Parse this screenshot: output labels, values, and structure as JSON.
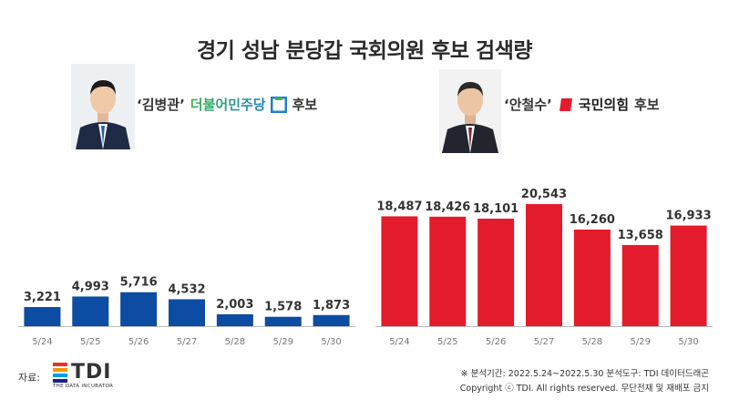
{
  "title": "경기 성남 분당갑 국회의원 후보 검색량",
  "candidates": [
    {
      "name": "‘김병관’",
      "party": "더불어민주당",
      "suffix": "후보",
      "color": "#0c4ca3",
      "party_colors": [
        "#3bb54a",
        "#1e7fc6"
      ]
    },
    {
      "name": "‘안철수’",
      "party": "국민의힘",
      "suffix": "후보",
      "color": "#e41b2c",
      "party_colors": [
        "#e41b2c"
      ]
    }
  ],
  "chart_data": [
    {
      "type": "bar",
      "categories": [
        "5/24",
        "5/25",
        "5/26",
        "5/27",
        "5/28",
        "5/29",
        "5/30"
      ],
      "values": [
        3221,
        4993,
        5716,
        4532,
        2003,
        1578,
        1873
      ],
      "value_labels": [
        "3,221",
        "4,993",
        "5,716",
        "4,532",
        "2,003",
        "1,578",
        "1,873"
      ],
      "color": "#0c4ca3",
      "ylim": [
        0,
        23000
      ]
    },
    {
      "type": "bar",
      "categories": [
        "5/24",
        "5/25",
        "5/26",
        "5/27",
        "5/28",
        "5/29",
        "5/30"
      ],
      "values": [
        18487,
        18426,
        18101,
        20543,
        16260,
        13658,
        16933
      ],
      "value_labels": [
        "18,487",
        "18,426",
        "18,101",
        "20,543",
        "16,260",
        "13,658",
        "16,933"
      ],
      "color": "#e41b2c",
      "ylim": [
        0,
        23000
      ]
    }
  ],
  "source": {
    "label": "자료:",
    "logo_text": "TDI",
    "logo_sub": "THE DATA INCUBATOR",
    "logo_colors": [
      "#e6332a",
      "#f39800",
      "#00a0e9",
      "#1d2088"
    ]
  },
  "footnote": {
    "line1": "※ 분석기간: 2022.5.24~2022.5.30  분석도구: TDI 데이터드래곤",
    "line2": "Copyright ⓒ TDI. All rights reserved. 무단전재 및 재배포 금지"
  }
}
